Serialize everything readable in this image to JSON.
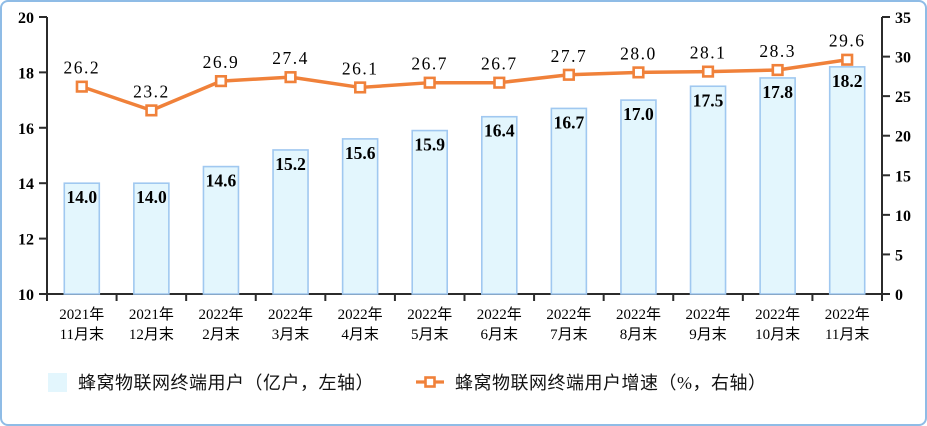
{
  "chart_data": {
    "type": "combo-bar-line",
    "grid": false,
    "legend_position": "bottom",
    "categories": [
      {
        "line1": "2021年",
        "line2": "11月末"
      },
      {
        "line1": "2021年",
        "line2": "12月末"
      },
      {
        "line1": "2022年",
        "line2": "2月末"
      },
      {
        "line1": "2022年",
        "line2": "3月末"
      },
      {
        "line1": "2022年",
        "line2": "4月末"
      },
      {
        "line1": "2022年",
        "line2": "5月末"
      },
      {
        "line1": "2022年",
        "line2": "6月末"
      },
      {
        "line1": "2022年",
        "line2": "7月末"
      },
      {
        "line1": "2022年",
        "line2": "8月末"
      },
      {
        "line1": "2022年",
        "line2": "9月末"
      },
      {
        "line1": "2022年",
        "line2": "10月末"
      },
      {
        "line1": "2022年",
        "line2": "11月末"
      }
    ],
    "series": [
      {
        "name": "蜂窝物联网终端用户（亿户，左轴）",
        "type": "bar",
        "axis": "left",
        "values": [
          14.0,
          14.0,
          14.6,
          15.2,
          15.6,
          15.9,
          16.4,
          16.7,
          17.0,
          17.5,
          17.8,
          18.2
        ],
        "fill": "#e3f6fd",
        "stroke": "#a0c8f0",
        "label_color": "#000000"
      },
      {
        "name": "蜂窝物联网终端用户增速（%，右轴）",
        "type": "line",
        "axis": "right",
        "values": [
          26.2,
          23.2,
          26.9,
          27.4,
          26.1,
          26.7,
          26.7,
          27.7,
          28.0,
          28.1,
          28.3,
          29.6
        ],
        "color": "#f0813a",
        "marker": "square-hollow",
        "marker_fill": "#ffffff",
        "label_color": "#000000"
      }
    ],
    "left_axis": {
      "min": 10,
      "max": 20,
      "ticks": [
        10,
        12,
        14,
        16,
        18,
        20
      ]
    },
    "right_axis": {
      "min": 0,
      "max": 35,
      "ticks": [
        0,
        5,
        10,
        15,
        20,
        25,
        30,
        35
      ]
    },
    "axis_color": "#2b2b2b",
    "tick_label_color": "#000000"
  },
  "legend": {
    "items": [
      {
        "label": "蜂窝物联网终端用户（亿户，左轴）",
        "swatch": "bar"
      },
      {
        "label": "蜂窝物联网终端用户增速（%，右轴）",
        "swatch": "line-marker"
      }
    ]
  },
  "colors": {
    "frame_border": "#8fbce6",
    "bar_fill": "#e3f6fd",
    "bar_stroke": "#a0c8f0",
    "line_orange": "#f0813a"
  }
}
